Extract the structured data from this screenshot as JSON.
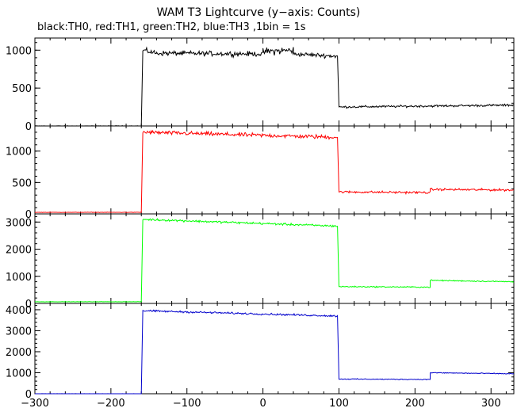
{
  "chart_data": {
    "type": "line",
    "title": "WAM T3 Lightcurve (y−axis: Counts)",
    "subtitle": "black:TH0, red:TH1, green:TH2, blue:TH3 ,1bin = 1s",
    "xlim": [
      -300,
      330
    ],
    "x_ticks": [
      -300,
      -200,
      -100,
      0,
      100,
      200,
      300
    ],
    "x_tick_labels": [
      "−300",
      "−200",
      "−100",
      "0",
      "100",
      "200",
      "300"
    ],
    "panels": [
      {
        "name": "TH0",
        "color": "#000000",
        "ylim": [
          0,
          1160
        ],
        "y_ticks": [
          0,
          500,
          1000
        ],
        "y_tick_labels": [
          "0",
          "500",
          "1000"
        ],
        "segments": [
          {
            "x": [
              -300,
              -160
            ],
            "start": 0,
            "end": 0,
            "noise": 4
          },
          {
            "x": [
              -158,
              -140
            ],
            "start": 1000,
            "end": 960,
            "noise": 45
          },
          {
            "x": [
              -140,
              0
            ],
            "start": 960,
            "end": 950,
            "noise": 45
          },
          {
            "x": [
              0,
              40
            ],
            "start": 980,
            "end": 1000,
            "noise": 70
          },
          {
            "x": [
              40,
              98
            ],
            "start": 950,
            "end": 920,
            "noise": 40
          },
          {
            "x": [
              100,
              330
            ],
            "start": 250,
            "end": 275,
            "noise": 20
          }
        ]
      },
      {
        "name": "TH1",
        "color": "#ff0000",
        "ylim": [
          0,
          1400
        ],
        "y_ticks": [
          0,
          500,
          1000
        ],
        "y_tick_labels": [
          "0",
          "500",
          "1000"
        ],
        "segments": [
          {
            "x": [
              -300,
              -160
            ],
            "start": 25,
            "end": 25,
            "noise": 4
          },
          {
            "x": [
              -158,
              98
            ],
            "start": 1300,
            "end": 1220,
            "noise": 45
          },
          {
            "x": [
              100,
              220
            ],
            "start": 350,
            "end": 340,
            "noise": 25
          },
          {
            "x": [
              220,
              330
            ],
            "start": 390,
            "end": 380,
            "noise": 25
          }
        ]
      },
      {
        "name": "TH2",
        "color": "#00ff00",
        "ylim": [
          0,
          3300
        ],
        "y_ticks": [
          0,
          1000,
          2000,
          3000
        ],
        "y_tick_labels": [
          "0",
          "1000",
          "2000",
          "3000"
        ],
        "segments": [
          {
            "x": [
              -300,
              -160
            ],
            "start": 60,
            "end": 60,
            "noise": 6
          },
          {
            "x": [
              -158,
              98
            ],
            "start": 3100,
            "end": 2850,
            "noise": 55
          },
          {
            "x": [
              100,
              220
            ],
            "start": 620,
            "end": 600,
            "noise": 30
          },
          {
            "x": [
              220,
              330
            ],
            "start": 850,
            "end": 800,
            "noise": 30
          }
        ]
      },
      {
        "name": "TH3",
        "color": "#0000cc",
        "ylim": [
          0,
          4300
        ],
        "y_ticks": [
          0,
          1000,
          2000,
          3000,
          4000
        ],
        "y_tick_labels": [
          "0",
          "1000",
          "2000",
          "3000",
          "4000"
        ],
        "segments": [
          {
            "x": [
              -300,
              -160
            ],
            "start": 0,
            "end": 0,
            "noise": 6
          },
          {
            "x": [
              -158,
              98
            ],
            "start": 3950,
            "end": 3700,
            "noise": 60
          },
          {
            "x": [
              100,
              220
            ],
            "start": 700,
            "end": 680,
            "noise": 30
          },
          {
            "x": [
              220,
              330
            ],
            "start": 1000,
            "end": 950,
            "noise": 30
          }
        ]
      }
    ]
  }
}
